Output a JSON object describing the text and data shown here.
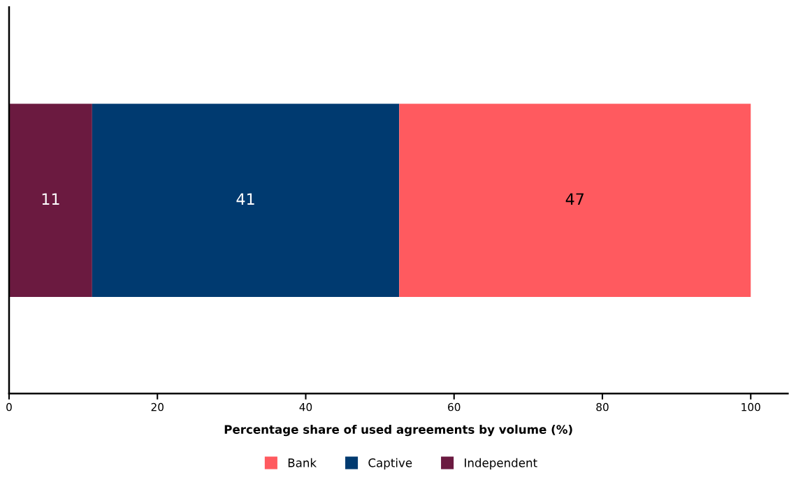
{
  "chart_data": {
    "type": "bar",
    "orientation": "horizontal",
    "stacked": true,
    "xlabel": "Percentage share of used agreements by volume (%)",
    "categories": [
      null
    ],
    "series": [
      {
        "name": "Independent",
        "color": "#6b1a40",
        "values": [
          11.2
        ],
        "value_labels": [
          "11"
        ]
      },
      {
        "name": "Captive",
        "color": "#003a70",
        "values": [
          41.4
        ],
        "value_labels": [
          "41"
        ]
      },
      {
        "name": "Bank",
        "color": "#ff5a5f",
        "values": [
          47.4
        ],
        "value_labels": [
          "47"
        ]
      }
    ],
    "xlim": [
      0,
      105
    ],
    "xticks": [
      0,
      20,
      40,
      60,
      80,
      100
    ],
    "tick_labels": "x",
    "grid": false,
    "legend": "bottom"
  }
}
